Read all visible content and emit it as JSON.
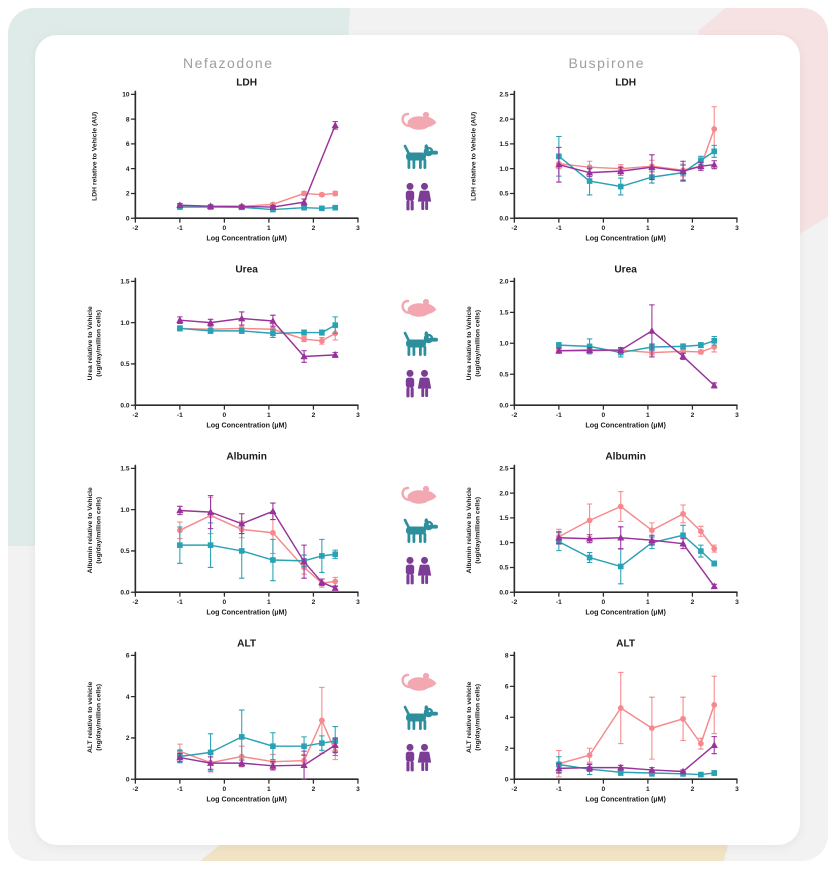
{
  "header": {
    "columns": [
      "Nefazodone",
      "Buspirone"
    ]
  },
  "species": [
    {
      "name": "rat",
      "icon": "rat-icon",
      "icon_color": "#F2A7B1"
    },
    {
      "name": "dog",
      "icon": "dog-icon",
      "icon_color": "#2E8F9C"
    },
    {
      "name": "human",
      "icon": "human-couple-icon",
      "icon_color": "#7C3D97"
    }
  ],
  "series_colors": {
    "rat": "#F5898D",
    "dog": "#2AA2B5",
    "human": "#99339B"
  },
  "axis_color": "#2b2b2b",
  "chart_data": [
    {
      "type": "line",
      "drug": "Nefazodone",
      "title": "LDH",
      "ylabel": [
        "LDH relative to Vehicle (AU)"
      ],
      "xlabel": "Log Concentration (µM)",
      "xlim": [
        -2,
        3
      ],
      "xticks": [
        "-2",
        "-1",
        "0",
        "1",
        "2",
        "3"
      ],
      "ylim": [
        0,
        10
      ],
      "yticks": [
        "0",
        "2",
        "4",
        "6",
        "8",
        "10"
      ],
      "series": [
        {
          "species": "rat",
          "marker": "circle",
          "x": [
            -1,
            -0.31,
            0.39,
            1.09,
            1.79,
            2.19,
            2.49
          ],
          "y": [
            1.0,
            0.95,
            0.95,
            1.12,
            2.0,
            1.9,
            2.0
          ],
          "err": [
            0.18,
            0.08,
            0.1,
            0.08,
            0.15,
            0.12,
            0.18
          ]
        },
        {
          "species": "dog",
          "marker": "square",
          "x": [
            -1,
            -0.31,
            0.39,
            1.09,
            1.79,
            2.19,
            2.49
          ],
          "y": [
            0.9,
            0.9,
            0.88,
            0.7,
            0.85,
            0.8,
            0.85
          ],
          "err": [
            0.12,
            0.08,
            0.08,
            0.1,
            0.08,
            0.08,
            0.08
          ]
        },
        {
          "species": "human",
          "marker": "triangle",
          "x": [
            -1,
            -0.31,
            0.39,
            1.09,
            1.79,
            2.49
          ],
          "y": [
            1.05,
            0.97,
            0.95,
            0.9,
            1.3,
            7.5
          ],
          "err": [
            0.15,
            0.1,
            0.1,
            0.12,
            0.25,
            0.3
          ]
        }
      ]
    },
    {
      "type": "line",
      "drug": "Buspirone",
      "title": "LDH",
      "ylabel": [
        "LDH relative to Vehicle (AU)"
      ],
      "xlabel": "Log Concentration (µM)",
      "xlim": [
        -2,
        3
      ],
      "xticks": [
        "-2",
        "-1",
        "0",
        "1",
        "2",
        "3"
      ],
      "ylim": [
        0,
        2.5
      ],
      "yticks": [
        "0.0",
        "0.5",
        "1.0",
        "1.5",
        "2.0",
        "2.5"
      ],
      "series": [
        {
          "species": "rat",
          "marker": "circle",
          "x": [
            -1,
            -0.31,
            0.39,
            1.09,
            1.79,
            2.19,
            2.49
          ],
          "y": [
            1.1,
            1.03,
            1.0,
            1.05,
            0.97,
            1.05,
            1.8
          ],
          "err": [
            0.1,
            0.12,
            0.08,
            0.12,
            0.12,
            0.08,
            0.45
          ]
        },
        {
          "species": "dog",
          "marker": "square",
          "x": [
            -1,
            -0.31,
            0.39,
            1.09,
            1.79,
            2.19,
            2.49
          ],
          "y": [
            1.25,
            0.75,
            0.64,
            0.83,
            0.92,
            1.17,
            1.35
          ],
          "err": [
            0.4,
            0.28,
            0.17,
            0.12,
            0.15,
            0.08,
            0.12
          ]
        },
        {
          "species": "human",
          "marker": "triangle",
          "x": [
            -1,
            -0.31,
            0.39,
            1.09,
            1.79,
            2.19,
            2.49
          ],
          "y": [
            1.08,
            0.92,
            0.95,
            1.03,
            0.95,
            1.05,
            1.08
          ],
          "err": [
            0.35,
            0.08,
            0.08,
            0.25,
            0.2,
            0.08,
            0.08
          ]
        }
      ]
    },
    {
      "type": "line",
      "drug": "Nefazodone",
      "title": "Urea",
      "ylabel": [
        "Urea relative to Vehicle",
        "(ug/day/million cells)"
      ],
      "xlabel": "Log Concentration (µM)",
      "xlim": [
        -2,
        3
      ],
      "xticks": [
        "-2",
        "-1",
        "0",
        "1",
        "2",
        "3"
      ],
      "ylim": [
        0,
        1.5
      ],
      "yticks": [
        "0.0",
        "0.5",
        "1.0",
        "1.5"
      ],
      "series": [
        {
          "species": "rat",
          "marker": "circle",
          "x": [
            -1,
            -0.31,
            0.39,
            1.09,
            1.79,
            2.19,
            2.49
          ],
          "y": [
            0.93,
            0.92,
            0.93,
            0.92,
            0.8,
            0.78,
            0.87
          ],
          "err": [
            0.03,
            0.04,
            0.04,
            0.05,
            0.03,
            0.04,
            0.08
          ]
        },
        {
          "species": "dog",
          "marker": "square",
          "x": [
            -1,
            -0.31,
            0.39,
            1.09,
            1.79,
            2.19,
            2.49
          ],
          "y": [
            0.93,
            0.9,
            0.9,
            0.87,
            0.88,
            0.88,
            0.97
          ],
          "err": [
            0.03,
            0.03,
            0.03,
            0.05,
            0.03,
            0.03,
            0.1
          ]
        },
        {
          "species": "human",
          "marker": "triangle",
          "x": [
            -1,
            -0.31,
            0.39,
            1.09,
            1.79,
            2.49
          ],
          "y": [
            1.03,
            1.0,
            1.05,
            1.02,
            0.59,
            0.61
          ],
          "err": [
            0.04,
            0.04,
            0.08,
            0.07,
            0.07,
            0.03
          ]
        }
      ]
    },
    {
      "type": "line",
      "drug": "Buspirone",
      "title": "Urea",
      "ylabel": [
        "Urea relative to Vehicle",
        "(ug/day/million cells)"
      ],
      "xlabel": "Log Concentration (µM)",
      "xlim": [
        -2,
        3
      ],
      "xticks": [
        "-2",
        "-1",
        "0",
        "1",
        "2",
        "3"
      ],
      "ylim": [
        0,
        2.0
      ],
      "yticks": [
        "0.0",
        "0.5",
        "1.0",
        "1.5",
        "2.0"
      ],
      "series": [
        {
          "species": "rat",
          "marker": "circle",
          "x": [
            -1,
            -0.31,
            0.39,
            1.09,
            1.79,
            2.19,
            2.49
          ],
          "y": [
            0.88,
            0.88,
            0.89,
            0.85,
            0.87,
            0.86,
            0.94
          ],
          "err": [
            0.04,
            0.04,
            0.04,
            0.04,
            0.03,
            0.03,
            0.08
          ]
        },
        {
          "species": "dog",
          "marker": "square",
          "x": [
            -1,
            -0.31,
            0.39,
            1.09,
            1.79,
            2.19,
            2.49
          ],
          "y": [
            0.97,
            0.95,
            0.85,
            0.94,
            0.95,
            0.97,
            1.04
          ],
          "err": [
            0.04,
            0.12,
            0.07,
            0.05,
            0.04,
            0.04,
            0.07
          ]
        },
        {
          "species": "human",
          "marker": "triangle",
          "x": [
            -1,
            -0.31,
            0.39,
            1.09,
            1.79,
            2.49
          ],
          "y": [
            0.88,
            0.89,
            0.89,
            1.2,
            0.79,
            0.32
          ],
          "err": [
            0.04,
            0.04,
            0.04,
            0.42,
            0.05,
            0.04
          ]
        }
      ]
    },
    {
      "type": "line",
      "drug": "Nefazodone",
      "title": "Albumin",
      "ylabel": [
        "Albumin relative to Vehicle",
        "(ug/day/million cells)"
      ],
      "xlabel": "Log Concentration (µM)",
      "xlim": [
        -2,
        3
      ],
      "xticks": [
        "-2",
        "-1",
        "0",
        "1",
        "2",
        "3"
      ],
      "ylim": [
        0,
        1.5
      ],
      "yticks": [
        "0.0",
        "0.5",
        "1.0",
        "1.5"
      ],
      "series": [
        {
          "species": "rat",
          "marker": "circle",
          "x": [
            -1,
            -0.31,
            0.39,
            1.09,
            1.79,
            2.19,
            2.49
          ],
          "y": [
            0.75,
            0.93,
            0.76,
            0.72,
            0.3,
            0.11,
            0.13
          ],
          "err": [
            0.1,
            0.22,
            0.1,
            0.25,
            0.08,
            0.05,
            0.05
          ]
        },
        {
          "species": "dog",
          "marker": "square",
          "x": [
            -1,
            -0.31,
            0.39,
            1.09,
            1.79,
            2.19,
            2.49
          ],
          "y": [
            0.57,
            0.57,
            0.5,
            0.39,
            0.38,
            0.44,
            0.46
          ],
          "err": [
            0.22,
            0.27,
            0.33,
            0.25,
            0.07,
            0.2,
            0.05
          ]
        },
        {
          "species": "human",
          "marker": "triangle",
          "x": [
            -1,
            -0.31,
            0.39,
            1.09,
            1.79,
            2.19,
            2.49
          ],
          "y": [
            0.99,
            0.97,
            0.83,
            0.98,
            0.37,
            0.12,
            0.05
          ],
          "err": [
            0.05,
            0.2,
            0.12,
            0.1,
            0.2,
            0.04,
            0.02
          ]
        }
      ]
    },
    {
      "type": "line",
      "drug": "Buspirone",
      "title": "Albumin",
      "ylabel": [
        "Albumin relative to Vehicle",
        "(ug/day/million cells)"
      ],
      "xlabel": "Log Concentration (µM)",
      "xlim": [
        -2,
        3
      ],
      "xticks": [
        "-2",
        "-1",
        "0",
        "1",
        "2",
        "3"
      ],
      "ylim": [
        0,
        2.5
      ],
      "yticks": [
        "0.0",
        "0.5",
        "1.0",
        "1.5",
        "2.0",
        "2.5"
      ],
      "series": [
        {
          "species": "rat",
          "marker": "circle",
          "x": [
            -1,
            -0.31,
            0.39,
            1.09,
            1.79,
            2.19,
            2.49
          ],
          "y": [
            1.12,
            1.45,
            1.73,
            1.25,
            1.58,
            1.23,
            0.88
          ],
          "err": [
            0.15,
            0.33,
            0.3,
            0.15,
            0.18,
            0.1,
            0.07
          ]
        },
        {
          "species": "dog",
          "marker": "square",
          "x": [
            -1,
            -0.31,
            0.39,
            1.09,
            1.79,
            2.19,
            2.49
          ],
          "y": [
            1.02,
            0.7,
            0.52,
            1.0,
            1.15,
            0.83,
            0.58
          ],
          "err": [
            0.18,
            0.1,
            0.35,
            0.12,
            0.2,
            0.12,
            0.05
          ]
        },
        {
          "species": "human",
          "marker": "triangle",
          "x": [
            -1,
            -0.31,
            0.39,
            1.09,
            1.79,
            2.49
          ],
          "y": [
            1.1,
            1.08,
            1.1,
            1.05,
            0.98,
            0.12
          ],
          "err": [
            0.12,
            0.08,
            0.22,
            0.1,
            0.1,
            0.04
          ]
        }
      ]
    },
    {
      "type": "line",
      "drug": "Nefazodone",
      "title": "ALT",
      "ylabel": [
        "ALT relative to vehicle",
        "(ng/day/million cells)"
      ],
      "xlabel": "Log Concentration (µM)",
      "xlim": [
        -2,
        3
      ],
      "xticks": [
        "-2",
        "-1",
        "0",
        "1",
        "2",
        "3"
      ],
      "ylim": [
        0,
        6
      ],
      "yticks": [
        "0",
        "2",
        "4",
        "6"
      ],
      "series": [
        {
          "species": "rat",
          "marker": "circle",
          "x": [
            -1,
            -0.31,
            0.39,
            1.09,
            1.79,
            2.19,
            2.49
          ],
          "y": [
            1.35,
            0.8,
            1.1,
            0.85,
            0.9,
            2.85,
            1.35
          ],
          "err": [
            0.35,
            0.45,
            0.5,
            0.35,
            0.3,
            1.6,
            0.4
          ]
        },
        {
          "species": "dog",
          "marker": "square",
          "x": [
            -1,
            -0.31,
            0.39,
            1.09,
            1.79,
            2.19,
            2.49
          ],
          "y": [
            1.1,
            1.3,
            2.05,
            1.6,
            1.6,
            1.75,
            1.85
          ],
          "err": [
            0.3,
            0.9,
            1.3,
            0.65,
            0.45,
            0.35,
            0.7
          ]
        },
        {
          "species": "human",
          "marker": "triangle",
          "x": [
            -1,
            -0.31,
            0.39,
            1.09,
            1.79,
            2.49
          ],
          "y": [
            1.05,
            0.78,
            0.78,
            0.65,
            0.68,
            1.65
          ],
          "err": [
            0.2,
            0.3,
            0.15,
            0.2,
            0.68,
            0.35
          ]
        }
      ]
    },
    {
      "type": "line",
      "drug": "Buspirone",
      "title": "ALT",
      "ylabel": [
        "ALT relative to vehicle",
        "(ng/day/million cells)"
      ],
      "xlabel": "Log Concentration (µM)",
      "xlim": [
        -2,
        3
      ],
      "xticks": [
        "-2",
        "-1",
        "0",
        "1",
        "2",
        "3"
      ],
      "ylim": [
        0,
        8
      ],
      "yticks": [
        "0",
        "2",
        "4",
        "6",
        "8"
      ],
      "series": [
        {
          "species": "rat",
          "marker": "circle",
          "x": [
            -1,
            -0.31,
            0.39,
            1.09,
            1.79,
            2.19,
            2.49
          ],
          "y": [
            1.0,
            1.55,
            4.6,
            3.3,
            3.9,
            2.3,
            4.8
          ],
          "err": [
            0.85,
            0.45,
            2.3,
            2.0,
            1.4,
            0.35,
            1.85
          ]
        },
        {
          "species": "dog",
          "marker": "square",
          "x": [
            -1,
            -0.31,
            0.39,
            1.09,
            1.79,
            2.19,
            2.49
          ],
          "y": [
            0.95,
            0.65,
            0.45,
            0.4,
            0.35,
            0.3,
            0.4
          ],
          "err": [
            0.5,
            0.35,
            0.2,
            0.2,
            0.15,
            0.08,
            0.15
          ]
        },
        {
          "species": "human",
          "marker": "triangle",
          "x": [
            -1,
            -0.31,
            0.39,
            1.09,
            1.79,
            2.49
          ],
          "y": [
            0.7,
            0.75,
            0.75,
            0.6,
            0.5,
            2.2
          ],
          "err": [
            0.3,
            0.2,
            0.15,
            0.15,
            0.1,
            0.55
          ]
        }
      ]
    }
  ]
}
